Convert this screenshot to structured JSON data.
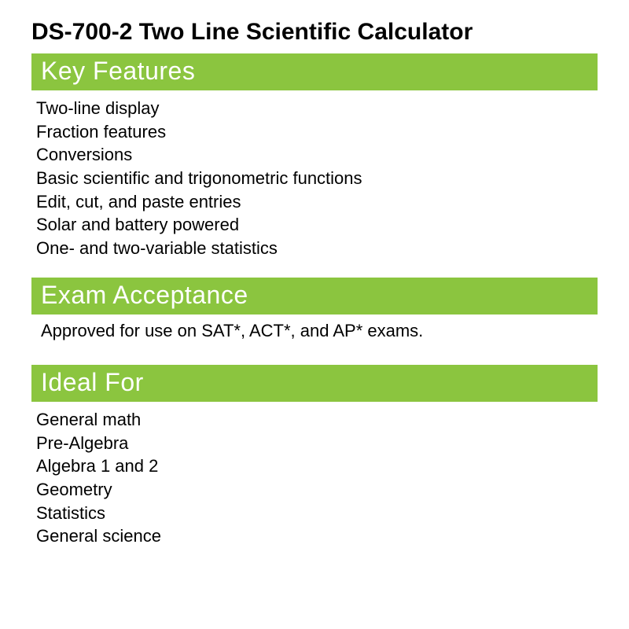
{
  "title": "DS-700-2 Two Line Scientific Calculator",
  "sections": {
    "key_features": {
      "heading": "Key Features",
      "items": [
        "Two-line display",
        "Fraction features",
        "Conversions",
        "Basic scientific and trigonometric functions",
        "Edit, cut, and paste entries",
        "Solar and battery powered",
        "One- and two-variable statistics"
      ]
    },
    "exam_acceptance": {
      "heading": "Exam Acceptance",
      "text": "Approved for use on SAT*, ACT*, and AP* exams."
    },
    "ideal_for": {
      "heading": "Ideal For",
      "items": [
        "General math",
        "Pre-Algebra",
        "Algebra 1 and 2",
        "Geometry",
        "Statistics",
        "General science"
      ]
    }
  },
  "colors": {
    "header_bg": "#8bc53f",
    "header_text": "#ffffff",
    "body_text": "#000000",
    "background": "#ffffff"
  },
  "typography": {
    "title_fontsize": 30,
    "title_weight": 700,
    "header_fontsize": 32,
    "header_weight": 400,
    "body_fontsize": 22,
    "body_weight": 400
  }
}
